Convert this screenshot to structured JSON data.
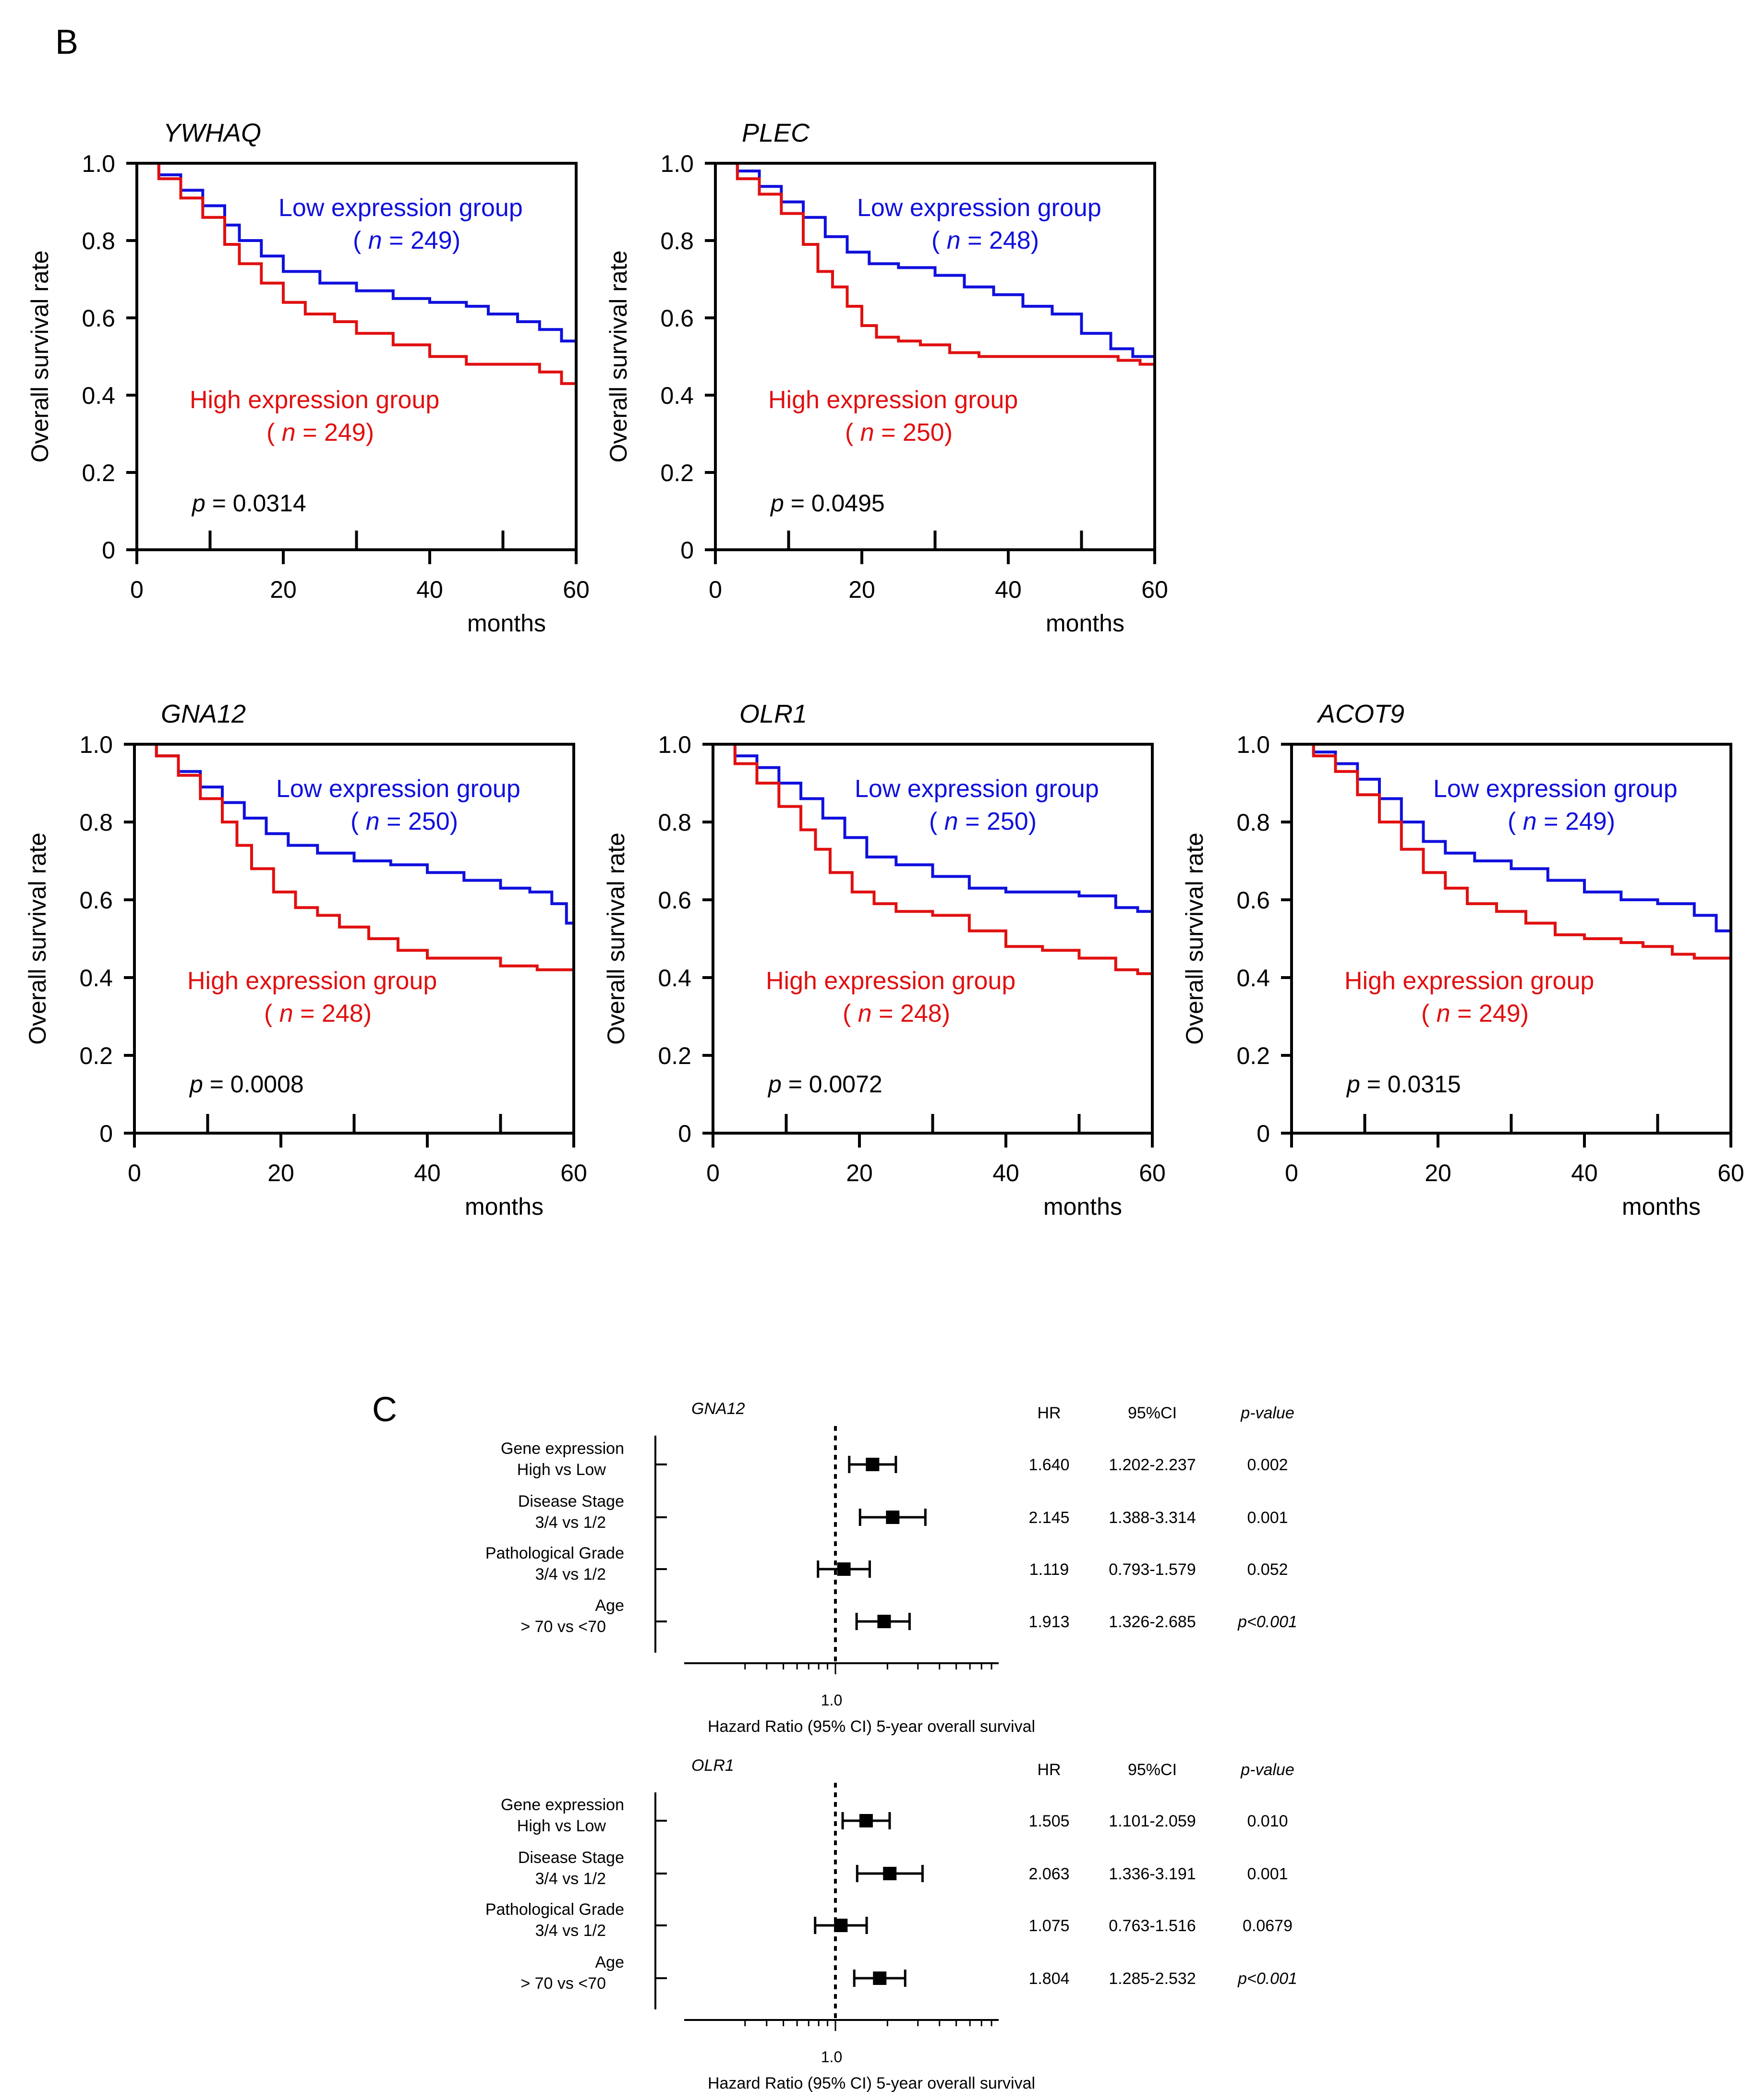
{
  "panel_b_label": "B",
  "panel_c_label": "C",
  "colors": {
    "low": "#1010dd",
    "high": "#e01010",
    "axis": "#000000"
  },
  "km_common": {
    "ylabel": "Overall survival rate",
    "xlabel": "months",
    "x_ticks": [
      "0",
      "20",
      "40",
      "60"
    ],
    "y_ticks": [
      "0",
      "0.2",
      "0.4",
      "0.6",
      "0.8",
      "1.0"
    ],
    "low_label": "Low expression group",
    "high_label": "High expression group",
    "p_prefix": "p",
    "n_prefix": "n"
  },
  "forest_common": {
    "hr_header": "HR",
    "ci_header": "95%CI",
    "p_header": "p-value",
    "ref_tick": "1.0",
    "xlabel": "Hazard Ratio (95% CI) 5-year overall survival"
  },
  "chart_data": [
    {
      "type": "line",
      "title": "YWHAQ",
      "xlabel": "months",
      "ylabel": "Overall survival rate",
      "xlim": [
        0,
        60
      ],
      "ylim": [
        0,
        1.0
      ],
      "p_value": "0.0314",
      "n_low": "249",
      "n_high": "249",
      "series": [
        {
          "name": "Low expression group",
          "x": [
            0,
            3,
            6,
            9,
            12,
            14,
            17,
            20,
            25,
            30,
            35,
            40,
            45,
            48,
            52,
            55,
            58,
            60
          ],
          "y": [
            1.0,
            0.97,
            0.93,
            0.89,
            0.84,
            0.8,
            0.76,
            0.72,
            0.69,
            0.67,
            0.65,
            0.64,
            0.63,
            0.61,
            0.59,
            0.57,
            0.54,
            0.52
          ]
        },
        {
          "name": "High expression group",
          "x": [
            0,
            3,
            6,
            9,
            12,
            14,
            17,
            20,
            23,
            27,
            30,
            35,
            40,
            45,
            50,
            55,
            58,
            60
          ],
          "y": [
            1.0,
            0.96,
            0.91,
            0.86,
            0.79,
            0.74,
            0.69,
            0.64,
            0.61,
            0.59,
            0.56,
            0.53,
            0.5,
            0.48,
            0.48,
            0.46,
            0.43,
            0.43
          ]
        }
      ]
    },
    {
      "type": "line",
      "title": "PLEC",
      "xlabel": "months",
      "ylabel": "Overall survival rate",
      "xlim": [
        0,
        60
      ],
      "ylim": [
        0,
        1.0
      ],
      "p_value": "0.0495",
      "n_low": "248",
      "n_high": "250",
      "series": [
        {
          "name": "Low expression group",
          "x": [
            0,
            3,
            6,
            9,
            12,
            15,
            18,
            21,
            25,
            30,
            34,
            38,
            42,
            46,
            50,
            54,
            57,
            60
          ],
          "y": [
            1.0,
            0.98,
            0.94,
            0.9,
            0.86,
            0.81,
            0.77,
            0.74,
            0.73,
            0.71,
            0.68,
            0.66,
            0.63,
            0.61,
            0.56,
            0.52,
            0.5,
            0.46
          ]
        },
        {
          "name": "High expression group",
          "x": [
            0,
            3,
            6,
            9,
            12,
            14,
            16,
            18,
            20,
            22,
            25,
            28,
            32,
            36,
            40,
            45,
            50,
            55,
            58,
            60
          ],
          "y": [
            1.0,
            0.96,
            0.92,
            0.87,
            0.79,
            0.72,
            0.68,
            0.63,
            0.58,
            0.55,
            0.54,
            0.53,
            0.51,
            0.5,
            0.5,
            0.5,
            0.5,
            0.49,
            0.48,
            0.48
          ]
        }
      ]
    },
    {
      "type": "line",
      "title": "GNA12",
      "xlabel": "months",
      "ylabel": "Overall survival rate",
      "xlim": [
        0,
        60
      ],
      "ylim": [
        0,
        1.0
      ],
      "p_value": "0.0008",
      "n_low": "250",
      "n_high": "248",
      "series": [
        {
          "name": "Low expression group",
          "x": [
            0,
            3,
            6,
            9,
            12,
            15,
            18,
            21,
            25,
            30,
            35,
            40,
            45,
            50,
            54,
            57,
            59,
            60
          ],
          "y": [
            1.0,
            0.97,
            0.93,
            0.89,
            0.85,
            0.81,
            0.77,
            0.74,
            0.72,
            0.7,
            0.69,
            0.67,
            0.65,
            0.63,
            0.62,
            0.59,
            0.54,
            0.53
          ]
        },
        {
          "name": "High expression group",
          "x": [
            0,
            3,
            6,
            9,
            12,
            14,
            16,
            19,
            22,
            25,
            28,
            32,
            36,
            40,
            45,
            50,
            55,
            60
          ],
          "y": [
            1.0,
            0.97,
            0.92,
            0.86,
            0.8,
            0.74,
            0.68,
            0.62,
            0.58,
            0.56,
            0.53,
            0.5,
            0.47,
            0.45,
            0.45,
            0.43,
            0.42,
            0.42
          ]
        }
      ]
    },
    {
      "type": "line",
      "title": "OLR1",
      "xlabel": "months",
      "ylabel": "Overall survival rate",
      "xlim": [
        0,
        60
      ],
      "ylim": [
        0,
        1.0
      ],
      "p_value": "0.0072",
      "n_low": "250",
      "n_high": "248",
      "series": [
        {
          "name": "Low expression group",
          "x": [
            0,
            3,
            6,
            9,
            12,
            15,
            18,
            21,
            25,
            30,
            35,
            40,
            45,
            50,
            55,
            58,
            60
          ],
          "y": [
            1.0,
            0.97,
            0.94,
            0.9,
            0.86,
            0.81,
            0.76,
            0.71,
            0.69,
            0.66,
            0.63,
            0.62,
            0.62,
            0.61,
            0.58,
            0.57,
            0.53
          ]
        },
        {
          "name": "High expression group",
          "x": [
            0,
            3,
            6,
            9,
            12,
            14,
            16,
            19,
            22,
            25,
            30,
            35,
            40,
            45,
            50,
            55,
            58,
            60
          ],
          "y": [
            1.0,
            0.95,
            0.9,
            0.84,
            0.78,
            0.73,
            0.67,
            0.62,
            0.59,
            0.57,
            0.56,
            0.52,
            0.48,
            0.47,
            0.45,
            0.42,
            0.41,
            0.4
          ]
        }
      ]
    },
    {
      "type": "line",
      "title": "ACOT9",
      "xlabel": "months",
      "ylabel": "Overall survival rate",
      "xlim": [
        0,
        60
      ],
      "ylim": [
        0,
        1.0
      ],
      "p_value": "0.0315",
      "n_low": "249",
      "n_high": "249",
      "series": [
        {
          "name": "Low expression group",
          "x": [
            0,
            3,
            6,
            9,
            12,
            15,
            18,
            21,
            25,
            30,
            35,
            40,
            45,
            50,
            55,
            58,
            60
          ],
          "y": [
            1.0,
            0.98,
            0.95,
            0.91,
            0.86,
            0.8,
            0.75,
            0.72,
            0.7,
            0.68,
            0.65,
            0.62,
            0.6,
            0.59,
            0.56,
            0.52,
            0.49
          ]
        },
        {
          "name": "High expression group",
          "x": [
            0,
            3,
            6,
            9,
            12,
            15,
            18,
            21,
            24,
            28,
            32,
            36,
            40,
            45,
            48,
            52,
            55,
            60
          ],
          "y": [
            1.0,
            0.97,
            0.93,
            0.87,
            0.8,
            0.73,
            0.67,
            0.63,
            0.59,
            0.57,
            0.54,
            0.51,
            0.5,
            0.49,
            0.48,
            0.46,
            0.45,
            0.45
          ]
        }
      ]
    },
    {
      "type": "forest",
      "title": "GNA12",
      "xlabel": "Hazard Ratio (95% CI) 5-year overall survival",
      "xscale": "log",
      "ref": 1.0,
      "rows": [
        {
          "label1": "Gene expression",
          "label2": "High vs Low",
          "hr": 1.64,
          "lo": 1.202,
          "hi": 2.237,
          "hr_text": "1.640",
          "ci_text": "1.202-2.237",
          "p_text": "0.002",
          "p_italic": false
        },
        {
          "label1": "Disease Stage",
          "label2": "3/4 vs 1/2",
          "hr": 2.145,
          "lo": 1.388,
          "hi": 3.314,
          "hr_text": "2.145",
          "ci_text": "1.388-3.314",
          "p_text": "0.001",
          "p_italic": false
        },
        {
          "label1": "Pathological Grade",
          "label2": "3/4 vs 1/2",
          "hr": 1.119,
          "lo": 0.793,
          "hi": 1.579,
          "hr_text": "1.119",
          "ci_text": "0.793-1.579",
          "p_text": "0.052",
          "p_italic": false
        },
        {
          "label1": "Age",
          "label2": "> 70 vs <70",
          "hr": 1.913,
          "lo": 1.326,
          "hi": 2.685,
          "hr_text": "1.913",
          "ci_text": "1.326-2.685",
          "p_text": "p<0.001",
          "p_italic": true
        }
      ]
    },
    {
      "type": "forest",
      "title": "OLR1",
      "xlabel": "Hazard Ratio (95% CI) 5-year overall survival",
      "xscale": "log",
      "ref": 1.0,
      "rows": [
        {
          "label1": "Gene expression",
          "label2": "High vs Low",
          "hr": 1.505,
          "lo": 1.101,
          "hi": 2.059,
          "hr_text": "1.505",
          "ci_text": "1.101-2.059",
          "p_text": "0.010",
          "p_italic": false
        },
        {
          "label1": "Disease Stage",
          "label2": "3/4 vs 1/2",
          "hr": 2.063,
          "lo": 1.336,
          "hi": 3.191,
          "hr_text": "2.063",
          "ci_text": "1.336-3.191",
          "p_text": "0.001",
          "p_italic": false
        },
        {
          "label1": "Pathological Grade",
          "label2": "3/4 vs 1/2",
          "hr": 1.075,
          "lo": 0.763,
          "hi": 1.516,
          "hr_text": "1.075",
          "ci_text": "0.763-1.516",
          "p_text": "0.0679",
          "p_italic": false
        },
        {
          "label1": "Age",
          "label2": "> 70 vs <70",
          "hr": 1.804,
          "lo": 1.285,
          "hi": 2.532,
          "hr_text": "1.804",
          "ci_text": "1.285-2.532",
          "p_text": "p<0.001",
          "p_italic": true
        }
      ]
    }
  ]
}
